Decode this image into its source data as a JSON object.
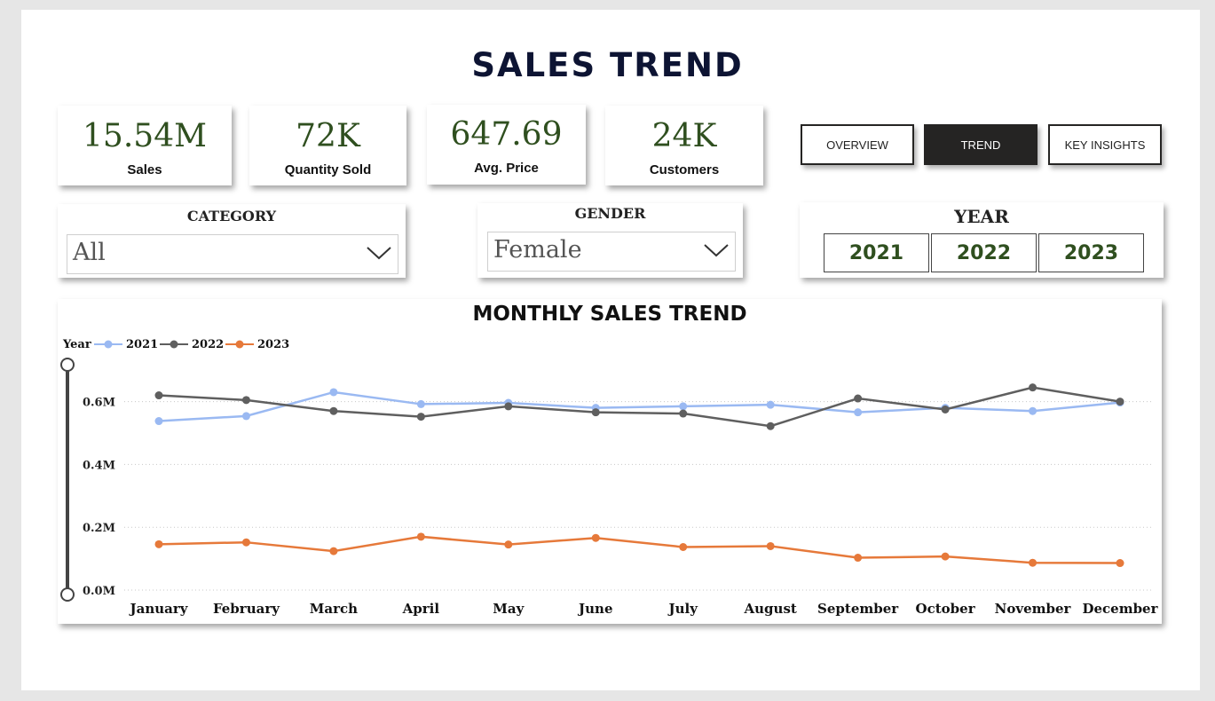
{
  "page": {
    "title": "SALES TREND"
  },
  "kpis": [
    {
      "value": "15.54M",
      "label": "Sales"
    },
    {
      "value": "72K",
      "label": "Quantity Sold"
    },
    {
      "value": "647.69",
      "label": "Avg. Price"
    },
    {
      "value": "24K",
      "label": "Customers"
    }
  ],
  "nav": {
    "overview": "OVERVIEW",
    "trend": "TREND",
    "insights": "KEY INSIGHTS",
    "active": "TREND"
  },
  "filters": {
    "category": {
      "title": "CATEGORY",
      "value": "All"
    },
    "gender": {
      "title": "GENDER",
      "value": "Female"
    },
    "year": {
      "title": "YEAR",
      "options": [
        "2021",
        "2022",
        "2023"
      ]
    }
  },
  "icons": {
    "dropdown": "chevron-down-icon",
    "range": "range-slider-handle"
  },
  "chart_data": {
    "type": "line",
    "title": "MONTHLY SALES TREND",
    "legend_title": "Year",
    "legend_position": "top-left",
    "categories": [
      "January",
      "February",
      "March",
      "April",
      "May",
      "June",
      "July",
      "August",
      "September",
      "October",
      "November",
      "December"
    ],
    "yticks": [
      "0.0M",
      "0.2M",
      "0.4M",
      "0.6M"
    ],
    "ylim": [
      0,
      0.72
    ],
    "grid": true,
    "series": [
      {
        "name": "2021",
        "color": "#9ab9f2",
        "values": [
          0.538,
          0.554,
          0.63,
          0.592,
          0.596,
          0.58,
          0.585,
          0.59,
          0.566,
          0.58,
          0.57,
          0.597
        ]
      },
      {
        "name": "2022",
        "color": "#5f5f5f",
        "values": [
          0.62,
          0.605,
          0.57,
          0.552,
          0.585,
          0.566,
          0.562,
          0.522,
          0.61,
          0.575,
          0.645,
          0.6
        ]
      },
      {
        "name": "2023",
        "color": "#e6793a",
        "values": [
          0.146,
          0.152,
          0.124,
          0.17,
          0.145,
          0.166,
          0.137,
          0.14,
          0.103,
          0.107,
          0.087,
          0.086
        ]
      }
    ]
  }
}
